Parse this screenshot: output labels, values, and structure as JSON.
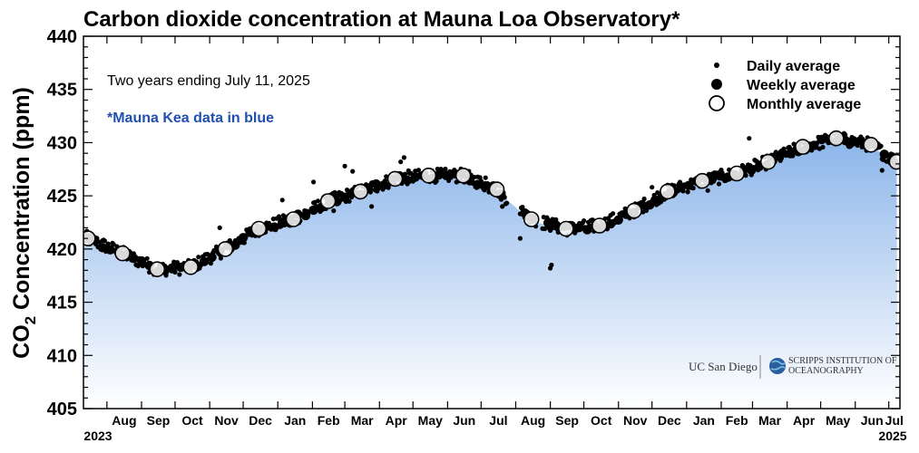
{
  "chart_data": {
    "type": "scatter",
    "title": "Carbon dioxide concentration at Mauna Loa Observatory*",
    "ylabel_main": "CO",
    "ylabel_sub": "2",
    "ylabel_rest": " Concentration (ppm)",
    "ylim": [
      405,
      440
    ],
    "yticks": [
      405,
      410,
      415,
      420,
      425,
      430,
      435,
      440
    ],
    "xlim": [
      "2023-07-11",
      "2025-07-11"
    ],
    "x_month_labels": [
      {
        "label": "Aug",
        "date": "2023-08-01"
      },
      {
        "label": "Sep",
        "date": "2023-09-01"
      },
      {
        "label": "Oct",
        "date": "2023-10-01"
      },
      {
        "label": "Nov",
        "date": "2023-11-01"
      },
      {
        "label": "Dec",
        "date": "2023-12-01"
      },
      {
        "label": "Jan",
        "date": "2024-01-01"
      },
      {
        "label": "Feb",
        "date": "2024-02-01"
      },
      {
        "label": "Mar",
        "date": "2024-03-01"
      },
      {
        "label": "Apr",
        "date": "2024-04-01"
      },
      {
        "label": "May",
        "date": "2024-05-01"
      },
      {
        "label": "Jun",
        "date": "2024-06-01"
      },
      {
        "label": "Jul",
        "date": "2024-07-01"
      },
      {
        "label": "Aug",
        "date": "2024-08-01"
      },
      {
        "label": "Sep",
        "date": "2024-09-01"
      },
      {
        "label": "Oct",
        "date": "2024-10-01"
      },
      {
        "label": "Nov",
        "date": "2024-11-01"
      },
      {
        "label": "Dec",
        "date": "2024-12-01"
      },
      {
        "label": "Jan",
        "date": "2025-01-01"
      },
      {
        "label": "Feb",
        "date": "2025-02-01"
      },
      {
        "label": "Mar",
        "date": "2025-03-01"
      },
      {
        "label": "Apr",
        "date": "2025-04-01"
      },
      {
        "label": "May",
        "date": "2025-05-01"
      },
      {
        "label": "Jun",
        "date": "2025-06-01"
      },
      {
        "label": "Jul",
        "date": "2025-07-01"
      }
    ],
    "year_labels": [
      {
        "label": "2023",
        "date": "2023-07-11"
      },
      {
        "label": "2025",
        "date": "2025-07-11"
      }
    ],
    "annotation": "Two years ending July 11, 2025",
    "note": "*Mauna Kea data in blue",
    "legend": {
      "placement": "top-right",
      "items": [
        {
          "label": "Daily average",
          "marker": "small-dot"
        },
        {
          "label": "Weekly average",
          "marker": "filled-circle"
        },
        {
          "label": "Monthly average",
          "marker": "open-circle"
        }
      ]
    },
    "monthly": [
      {
        "x": "2023-07-15",
        "y": 421.0
      },
      {
        "x": "2023-08-15",
        "y": 419.6
      },
      {
        "x": "2023-09-15",
        "y": 418.1
      },
      {
        "x": "2023-10-15",
        "y": 418.3
      },
      {
        "x": "2023-11-15",
        "y": 420.0
      },
      {
        "x": "2023-12-15",
        "y": 421.9
      },
      {
        "x": "2024-01-15",
        "y": 422.8
      },
      {
        "x": "2024-02-15",
        "y": 424.5
      },
      {
        "x": "2024-03-15",
        "y": 425.4
      },
      {
        "x": "2024-04-15",
        "y": 426.6
      },
      {
        "x": "2024-05-15",
        "y": 426.9
      },
      {
        "x": "2024-06-15",
        "y": 426.9
      },
      {
        "x": "2024-07-15",
        "y": 425.6
      },
      {
        "x": "2024-08-15",
        "y": 422.8
      },
      {
        "x": "2024-09-15",
        "y": 421.9
      },
      {
        "x": "2024-10-15",
        "y": 422.2
      },
      {
        "x": "2024-11-15",
        "y": 423.6
      },
      {
        "x": "2024-12-15",
        "y": 425.4
      },
      {
        "x": "2025-01-15",
        "y": 426.4
      },
      {
        "x": "2025-02-15",
        "y": 427.1
      },
      {
        "x": "2025-03-15",
        "y": 428.2
      },
      {
        "x": "2025-04-15",
        "y": 429.6
      },
      {
        "x": "2025-05-15",
        "y": 430.4
      },
      {
        "x": "2025-06-15",
        "y": 429.8
      },
      {
        "x": "2025-07-08",
        "y": 428.2
      }
    ],
    "outliers": [
      {
        "x": "2024-09-01",
        "y": 418.2
      },
      {
        "x": "2024-09-02",
        "y": 418.5
      },
      {
        "x": "2024-08-05",
        "y": 421.0
      },
      {
        "x": "2024-03-01",
        "y": 427.8
      },
      {
        "x": "2024-03-08",
        "y": 427.3
      },
      {
        "x": "2024-02-02",
        "y": 426.3
      },
      {
        "x": "2024-01-05",
        "y": 424.6
      },
      {
        "x": "2025-02-26",
        "y": 430.4
      },
      {
        "x": "2025-06-25",
        "y": 427.4
      },
      {
        "x": "2024-04-23",
        "y": 428.6
      },
      {
        "x": "2024-04-20",
        "y": 428.2
      },
      {
        "x": "2023-11-10",
        "y": 422.0
      },
      {
        "x": "2024-07-05",
        "y": 426.7
      },
      {
        "x": "2024-07-20",
        "y": 424.0
      },
      {
        "x": "2024-03-25",
        "y": 424.0
      },
      {
        "x": "2024-02-20",
        "y": 423.6
      },
      {
        "x": "2024-12-01",
        "y": 425.8
      },
      {
        "x": "2025-01-20",
        "y": 425.5
      }
    ]
  },
  "logos": {
    "ucsd": "UC San Diego",
    "scripps_line1": "SCRIPPS INSTITUTION OF",
    "scripps_line2": "OCEANOGRAPHY"
  },
  "colors": {
    "fill_top": "#8db6ea",
    "fill_bottom": "#ffffff",
    "marker": "#000000",
    "note_blue": "#1f4fb0"
  }
}
